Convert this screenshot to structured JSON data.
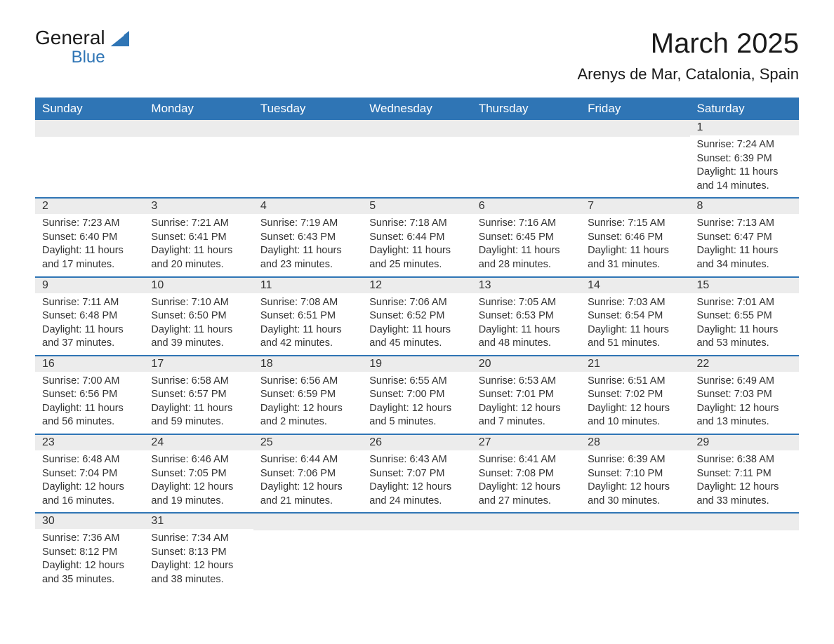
{
  "logo": {
    "word1": "General",
    "word2": "Blue"
  },
  "title": "March 2025",
  "subtitle": "Arenys de Mar, Catalonia, Spain",
  "colors": {
    "header_bg": "#2f75b5",
    "header_text": "#ffffff",
    "daynum_bg": "#ececec",
    "border": "#2f75b5",
    "text": "#333333",
    "logo_blue": "#2f75b5"
  },
  "columns": [
    "Sunday",
    "Monday",
    "Tuesday",
    "Wednesday",
    "Thursday",
    "Friday",
    "Saturday"
  ],
  "weeks": [
    [
      null,
      null,
      null,
      null,
      null,
      null,
      {
        "n": "1",
        "sunrise": "7:24 AM",
        "sunset": "6:39 PM",
        "daylight": "11 hours and 14 minutes."
      }
    ],
    [
      {
        "n": "2",
        "sunrise": "7:23 AM",
        "sunset": "6:40 PM",
        "daylight": "11 hours and 17 minutes."
      },
      {
        "n": "3",
        "sunrise": "7:21 AM",
        "sunset": "6:41 PM",
        "daylight": "11 hours and 20 minutes."
      },
      {
        "n": "4",
        "sunrise": "7:19 AM",
        "sunset": "6:43 PM",
        "daylight": "11 hours and 23 minutes."
      },
      {
        "n": "5",
        "sunrise": "7:18 AM",
        "sunset": "6:44 PM",
        "daylight": "11 hours and 25 minutes."
      },
      {
        "n": "6",
        "sunrise": "7:16 AM",
        "sunset": "6:45 PM",
        "daylight": "11 hours and 28 minutes."
      },
      {
        "n": "7",
        "sunrise": "7:15 AM",
        "sunset": "6:46 PM",
        "daylight": "11 hours and 31 minutes."
      },
      {
        "n": "8",
        "sunrise": "7:13 AM",
        "sunset": "6:47 PM",
        "daylight": "11 hours and 34 minutes."
      }
    ],
    [
      {
        "n": "9",
        "sunrise": "7:11 AM",
        "sunset": "6:48 PM",
        "daylight": "11 hours and 37 minutes."
      },
      {
        "n": "10",
        "sunrise": "7:10 AM",
        "sunset": "6:50 PM",
        "daylight": "11 hours and 39 minutes."
      },
      {
        "n": "11",
        "sunrise": "7:08 AM",
        "sunset": "6:51 PM",
        "daylight": "11 hours and 42 minutes."
      },
      {
        "n": "12",
        "sunrise": "7:06 AM",
        "sunset": "6:52 PM",
        "daylight": "11 hours and 45 minutes."
      },
      {
        "n": "13",
        "sunrise": "7:05 AM",
        "sunset": "6:53 PM",
        "daylight": "11 hours and 48 minutes."
      },
      {
        "n": "14",
        "sunrise": "7:03 AM",
        "sunset": "6:54 PM",
        "daylight": "11 hours and 51 minutes."
      },
      {
        "n": "15",
        "sunrise": "7:01 AM",
        "sunset": "6:55 PM",
        "daylight": "11 hours and 53 minutes."
      }
    ],
    [
      {
        "n": "16",
        "sunrise": "7:00 AM",
        "sunset": "6:56 PM",
        "daylight": "11 hours and 56 minutes."
      },
      {
        "n": "17",
        "sunrise": "6:58 AM",
        "sunset": "6:57 PM",
        "daylight": "11 hours and 59 minutes."
      },
      {
        "n": "18",
        "sunrise": "6:56 AM",
        "sunset": "6:59 PM",
        "daylight": "12 hours and 2 minutes."
      },
      {
        "n": "19",
        "sunrise": "6:55 AM",
        "sunset": "7:00 PM",
        "daylight": "12 hours and 5 minutes."
      },
      {
        "n": "20",
        "sunrise": "6:53 AM",
        "sunset": "7:01 PM",
        "daylight": "12 hours and 7 minutes."
      },
      {
        "n": "21",
        "sunrise": "6:51 AM",
        "sunset": "7:02 PM",
        "daylight": "12 hours and 10 minutes."
      },
      {
        "n": "22",
        "sunrise": "6:49 AM",
        "sunset": "7:03 PM",
        "daylight": "12 hours and 13 minutes."
      }
    ],
    [
      {
        "n": "23",
        "sunrise": "6:48 AM",
        "sunset": "7:04 PM",
        "daylight": "12 hours and 16 minutes."
      },
      {
        "n": "24",
        "sunrise": "6:46 AM",
        "sunset": "7:05 PM",
        "daylight": "12 hours and 19 minutes."
      },
      {
        "n": "25",
        "sunrise": "6:44 AM",
        "sunset": "7:06 PM",
        "daylight": "12 hours and 21 minutes."
      },
      {
        "n": "26",
        "sunrise": "6:43 AM",
        "sunset": "7:07 PM",
        "daylight": "12 hours and 24 minutes."
      },
      {
        "n": "27",
        "sunrise": "6:41 AM",
        "sunset": "7:08 PM",
        "daylight": "12 hours and 27 minutes."
      },
      {
        "n": "28",
        "sunrise": "6:39 AM",
        "sunset": "7:10 PM",
        "daylight": "12 hours and 30 minutes."
      },
      {
        "n": "29",
        "sunrise": "6:38 AM",
        "sunset": "7:11 PM",
        "daylight": "12 hours and 33 minutes."
      }
    ],
    [
      {
        "n": "30",
        "sunrise": "7:36 AM",
        "sunset": "8:12 PM",
        "daylight": "12 hours and 35 minutes."
      },
      {
        "n": "31",
        "sunrise": "7:34 AM",
        "sunset": "8:13 PM",
        "daylight": "12 hours and 38 minutes."
      },
      null,
      null,
      null,
      null,
      null
    ]
  ],
  "labels": {
    "sunrise": "Sunrise: ",
    "sunset": "Sunset: ",
    "daylight": "Daylight: "
  }
}
